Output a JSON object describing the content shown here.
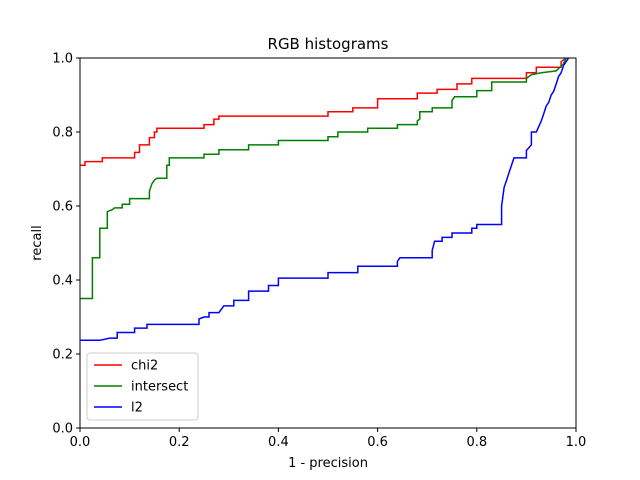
{
  "chart_data": {
    "type": "line",
    "title": "RGB histograms",
    "xlabel": "1 - precision",
    "ylabel": "recall",
    "xlim": [
      0,
      1
    ],
    "ylim": [
      0,
      1
    ],
    "grid": false,
    "legend_position": "lower-left",
    "x_ticks": [
      "0.0",
      "0.2",
      "0.4",
      "0.6",
      "0.8",
      "1.0"
    ],
    "y_ticks": [
      "0.0",
      "0.2",
      "0.4",
      "0.6",
      "0.8",
      "1.0"
    ],
    "series": [
      {
        "name": "chi2",
        "color": "#ff0000",
        "points": [
          [
            0.0,
            0.71
          ],
          [
            0.01,
            0.71
          ],
          [
            0.01,
            0.72
          ],
          [
            0.045,
            0.72
          ],
          [
            0.045,
            0.73
          ],
          [
            0.11,
            0.73
          ],
          [
            0.11,
            0.745
          ],
          [
            0.12,
            0.745
          ],
          [
            0.12,
            0.765
          ],
          [
            0.14,
            0.765
          ],
          [
            0.14,
            0.785
          ],
          [
            0.15,
            0.785
          ],
          [
            0.15,
            0.8
          ],
          [
            0.155,
            0.8
          ],
          [
            0.155,
            0.81
          ],
          [
            0.25,
            0.81
          ],
          [
            0.25,
            0.82
          ],
          [
            0.27,
            0.82
          ],
          [
            0.27,
            0.835
          ],
          [
            0.28,
            0.835
          ],
          [
            0.28,
            0.843
          ],
          [
            0.5,
            0.843
          ],
          [
            0.5,
            0.855
          ],
          [
            0.55,
            0.855
          ],
          [
            0.55,
            0.865
          ],
          [
            0.6,
            0.865
          ],
          [
            0.6,
            0.89
          ],
          [
            0.68,
            0.89
          ],
          [
            0.68,
            0.905
          ],
          [
            0.72,
            0.905
          ],
          [
            0.72,
            0.915
          ],
          [
            0.76,
            0.915
          ],
          [
            0.76,
            0.93
          ],
          [
            0.79,
            0.93
          ],
          [
            0.79,
            0.945
          ],
          [
            0.9,
            0.945
          ],
          [
            0.9,
            0.96
          ],
          [
            0.92,
            0.96
          ],
          [
            0.92,
            0.975
          ],
          [
            0.97,
            0.975
          ],
          [
            0.97,
            0.99
          ],
          [
            0.98,
            1.0
          ]
        ]
      },
      {
        "name": "intersect",
        "color": "#008000",
        "points": [
          [
            0.0,
            0.35
          ],
          [
            0.025,
            0.35
          ],
          [
            0.025,
            0.46
          ],
          [
            0.04,
            0.46
          ],
          [
            0.04,
            0.54
          ],
          [
            0.055,
            0.54
          ],
          [
            0.055,
            0.585
          ],
          [
            0.065,
            0.59
          ],
          [
            0.07,
            0.595
          ],
          [
            0.085,
            0.595
          ],
          [
            0.085,
            0.605
          ],
          [
            0.1,
            0.605
          ],
          [
            0.1,
            0.62
          ],
          [
            0.14,
            0.62
          ],
          [
            0.14,
            0.64
          ],
          [
            0.145,
            0.66
          ],
          [
            0.15,
            0.67
          ],
          [
            0.155,
            0.675
          ],
          [
            0.175,
            0.675
          ],
          [
            0.175,
            0.71
          ],
          [
            0.18,
            0.71
          ],
          [
            0.18,
            0.73
          ],
          [
            0.25,
            0.73
          ],
          [
            0.25,
            0.74
          ],
          [
            0.28,
            0.74
          ],
          [
            0.28,
            0.752
          ],
          [
            0.34,
            0.752
          ],
          [
            0.34,
            0.765
          ],
          [
            0.4,
            0.765
          ],
          [
            0.4,
            0.777
          ],
          [
            0.5,
            0.777
          ],
          [
            0.5,
            0.787
          ],
          [
            0.52,
            0.787
          ],
          [
            0.52,
            0.8
          ],
          [
            0.58,
            0.8
          ],
          [
            0.58,
            0.81
          ],
          [
            0.64,
            0.81
          ],
          [
            0.64,
            0.82
          ],
          [
            0.68,
            0.82
          ],
          [
            0.68,
            0.83
          ],
          [
            0.685,
            0.835
          ],
          [
            0.685,
            0.855
          ],
          [
            0.71,
            0.855
          ],
          [
            0.71,
            0.865
          ],
          [
            0.75,
            0.865
          ],
          [
            0.75,
            0.885
          ],
          [
            0.755,
            0.895
          ],
          [
            0.8,
            0.895
          ],
          [
            0.8,
            0.912
          ],
          [
            0.83,
            0.912
          ],
          [
            0.83,
            0.935
          ],
          [
            0.9,
            0.935
          ],
          [
            0.9,
            0.945
          ],
          [
            0.91,
            0.955
          ],
          [
            0.93,
            0.96
          ],
          [
            0.96,
            0.965
          ],
          [
            0.975,
            0.985
          ],
          [
            0.98,
            1.0
          ]
        ]
      },
      {
        "name": "l2",
        "color": "#0000ff",
        "points": [
          [
            0.0,
            0.237
          ],
          [
            0.04,
            0.237
          ],
          [
            0.06,
            0.243
          ],
          [
            0.075,
            0.243
          ],
          [
            0.075,
            0.258
          ],
          [
            0.11,
            0.258
          ],
          [
            0.11,
            0.27
          ],
          [
            0.135,
            0.27
          ],
          [
            0.135,
            0.28
          ],
          [
            0.24,
            0.28
          ],
          [
            0.24,
            0.295
          ],
          [
            0.25,
            0.3
          ],
          [
            0.26,
            0.3
          ],
          [
            0.26,
            0.312
          ],
          [
            0.28,
            0.312
          ],
          [
            0.29,
            0.33
          ],
          [
            0.31,
            0.33
          ],
          [
            0.31,
            0.345
          ],
          [
            0.34,
            0.345
          ],
          [
            0.34,
            0.37
          ],
          [
            0.38,
            0.37
          ],
          [
            0.38,
            0.385
          ],
          [
            0.4,
            0.385
          ],
          [
            0.4,
            0.405
          ],
          [
            0.5,
            0.405
          ],
          [
            0.5,
            0.42
          ],
          [
            0.56,
            0.42
          ],
          [
            0.56,
            0.437
          ],
          [
            0.64,
            0.437
          ],
          [
            0.64,
            0.45
          ],
          [
            0.645,
            0.46
          ],
          [
            0.71,
            0.46
          ],
          [
            0.71,
            0.48
          ],
          [
            0.715,
            0.505
          ],
          [
            0.73,
            0.505
          ],
          [
            0.73,
            0.515
          ],
          [
            0.75,
            0.515
          ],
          [
            0.75,
            0.527
          ],
          [
            0.79,
            0.527
          ],
          [
            0.79,
            0.54
          ],
          [
            0.8,
            0.54
          ],
          [
            0.8,
            0.55
          ],
          [
            0.85,
            0.55
          ],
          [
            0.85,
            0.6
          ],
          [
            0.855,
            0.65
          ],
          [
            0.86,
            0.67
          ],
          [
            0.865,
            0.69
          ],
          [
            0.87,
            0.71
          ],
          [
            0.875,
            0.73
          ],
          [
            0.9,
            0.73
          ],
          [
            0.9,
            0.75
          ],
          [
            0.91,
            0.765
          ],
          [
            0.91,
            0.8
          ],
          [
            0.92,
            0.8
          ],
          [
            0.93,
            0.83
          ],
          [
            0.935,
            0.85
          ],
          [
            0.94,
            0.87
          ],
          [
            0.945,
            0.88
          ],
          [
            0.95,
            0.9
          ],
          [
            0.955,
            0.91
          ],
          [
            0.96,
            0.93
          ],
          [
            0.965,
            0.95
          ],
          [
            0.97,
            0.96
          ],
          [
            0.975,
            0.98
          ],
          [
            0.98,
            0.99
          ],
          [
            0.985,
            1.0
          ]
        ]
      }
    ]
  }
}
